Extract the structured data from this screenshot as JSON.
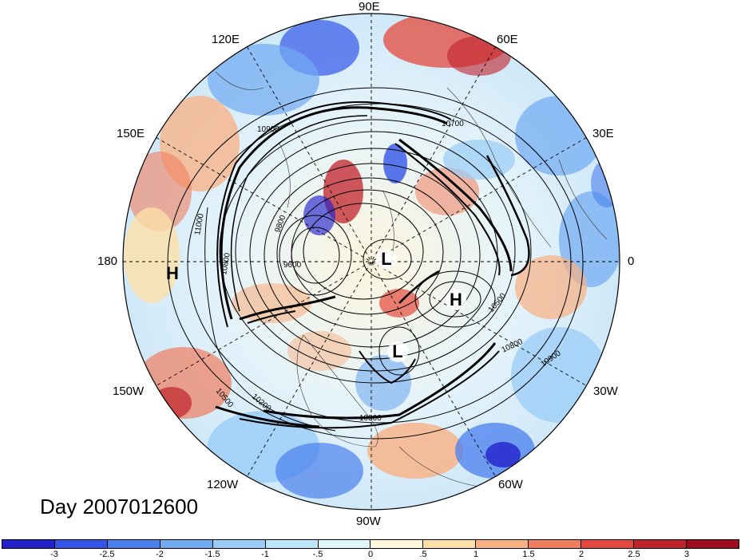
{
  "lon_labels": {
    "lon_90e": "90E",
    "lon_60e": "60E",
    "lon_120e": "120E",
    "lon_150e": "150E",
    "lon_30e": "30E",
    "lon_180": "180",
    "lon_0": "0",
    "lon_150w": "150W",
    "lon_30w": "30W",
    "lon_120w": "120W",
    "lon_60w": "60W",
    "lon_90w": "90W"
  },
  "title": "Day 2007012600",
  "pressure_systems": {
    "high_left": "H",
    "low_center": "L",
    "high_right": "H",
    "low_lower": "L"
  },
  "contour_labels": {
    "c_10900_a": "10900",
    "c_10700": "10700",
    "c_11000": "11000",
    "c_10800_a": "10800",
    "c_9800": "9800",
    "c_9600": "9600",
    "c_10500_a": "10500",
    "c_10800_b": "10800",
    "c_10900_b": "10900",
    "c_10500_b": "10500",
    "c_10200": "10200",
    "c_10800_c": "10800"
  },
  "colorbar": {
    "colors": [
      "#2222cc",
      "#3355e8",
      "#4a7fee",
      "#6faaf2",
      "#99ccf7",
      "#bde6fb",
      "#e0f6fd",
      "#fdf8dc",
      "#fde0a8",
      "#f9b083",
      "#f07e5e",
      "#e4483c",
      "#c0222a",
      "#9c0c1c"
    ],
    "ticks": [
      "-3",
      "-2.5",
      "-2",
      "-1.5",
      "-1",
      "-.5",
      "0",
      ".5",
      "1",
      "1.5",
      "2",
      "2.5",
      "3"
    ]
  }
}
